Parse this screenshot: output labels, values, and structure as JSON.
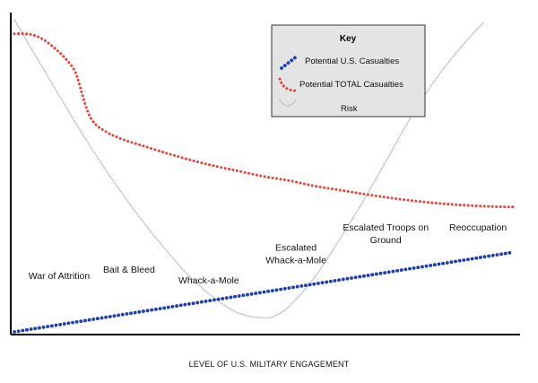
{
  "chart_data": {
    "type": "line",
    "title": "",
    "xlabel": "LEVEL OF U.S. MILITARY ENGAGEMENT",
    "ylabel": "",
    "xlim": [
      0,
      100
    ],
    "ylim": [
      0,
      100
    ],
    "grid": false,
    "legend": {
      "title": "Key",
      "position": "top-right"
    },
    "stages": [
      {
        "lines": [
          "War of Attrition"
        ],
        "x": 9,
        "y": 17
      },
      {
        "lines": [
          "Bait & Bleed"
        ],
        "x": 23,
        "y": 19
      },
      {
        "lines": [
          "Whack-a-Mole"
        ],
        "x": 39,
        "y": 15.5
      },
      {
        "lines": [
          "Escalated",
          "Whack-a-Mole"
        ],
        "x": 56.5,
        "y": 26
      },
      {
        "lines": [
          "Escalated Troops on",
          "Ground"
        ],
        "x": 74.5,
        "y": 32.5
      },
      {
        "lines": [
          "Reoccupation"
        ],
        "x": 93,
        "y": 32.5
      }
    ],
    "series": [
      {
        "name": "Potential U.S. Casualties",
        "color": "#1f3fb0",
        "style": "dotted-thick",
        "x": [
          0,
          100
        ],
        "y": [
          0,
          25.5
        ]
      },
      {
        "name": "Potential TOTAL Casualties",
        "color": "#e8433a",
        "style": "dotted",
        "x": [
          0,
          2,
          4,
          6,
          8,
          10,
          12,
          13,
          14,
          15,
          16,
          17,
          18,
          19,
          20,
          22,
          25,
          30,
          35,
          40,
          45,
          50,
          55,
          60,
          65,
          70,
          75,
          80,
          85,
          90,
          95,
          100
        ],
        "y": [
          95.5,
          95.5,
          95,
          93.5,
          91,
          88,
          84,
          79.5,
          74,
          69.5,
          67,
          65.5,
          64.5,
          63.5,
          62.8,
          61.5,
          60,
          57.5,
          55.2,
          53.2,
          51.5,
          49.8,
          48.5,
          46.8,
          45.5,
          44.2,
          43,
          42,
          41.2,
          40.6,
          40.2,
          40
        ]
      },
      {
        "name": "Risk",
        "color": "#aeb6c2",
        "style": "dotted-thin",
        "x": [
          0,
          5,
          10,
          15,
          20,
          25,
          30,
          35,
          40,
          45,
          50,
          52,
          55,
          60,
          65,
          70,
          75,
          80,
          85,
          90,
          94
        ],
        "y": [
          100,
          86.5,
          73,
          60,
          48,
          37,
          27,
          18,
          11,
          6,
          4.5,
          5,
          8,
          17,
          29,
          42,
          56,
          70,
          82,
          92,
          99
        ]
      }
    ]
  }
}
